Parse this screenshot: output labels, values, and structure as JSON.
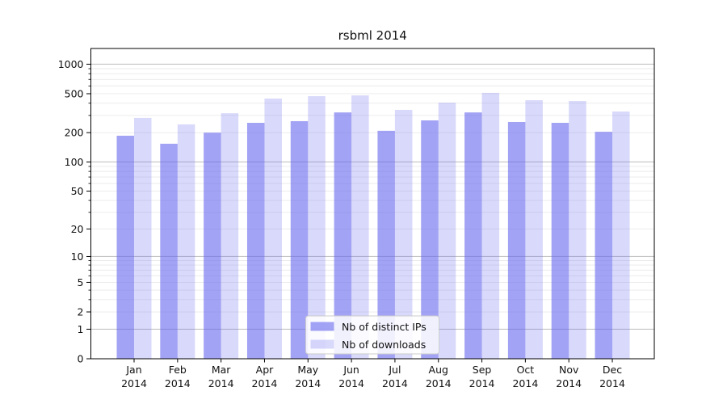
{
  "chart_data": {
    "type": "bar",
    "title": "rsbml 2014",
    "categories": [
      "Jan",
      "Feb",
      "Mar",
      "Apr",
      "May",
      "Jun",
      "Jul",
      "Aug",
      "Sep",
      "Oct",
      "Nov",
      "Dec"
    ],
    "year_label": "2014",
    "series": [
      {
        "name": "Nb of distinct IPs",
        "color": "rgba(102,102,238,0.6)",
        "values": [
          186,
          154,
          200,
          252,
          262,
          322,
          209,
          267,
          322,
          257,
          252,
          204
        ]
      },
      {
        "name": "Nb of downloads",
        "color": "rgba(102,102,238,0.25)",
        "values": [
          283,
          243,
          316,
          446,
          472,
          480,
          342,
          405,
          510,
          429,
          421,
          329
        ]
      }
    ],
    "y_scale": "log1p",
    "y_ticks": [
      1000,
      500,
      200,
      100,
      50,
      20,
      10,
      5,
      2,
      1,
      0
    ],
    "ylim": [
      0,
      1450
    ],
    "grid": true,
    "legend_position": "lower-center",
    "colors": {
      "axis": "#000000",
      "major_grid": "#c3c3c3",
      "minor_grid": "#eaeaea",
      "text": "#111111",
      "legend_bg": "rgba(255,255,255,0.85)",
      "legend_border": "#cccccc",
      "background": "#ffffff"
    }
  }
}
